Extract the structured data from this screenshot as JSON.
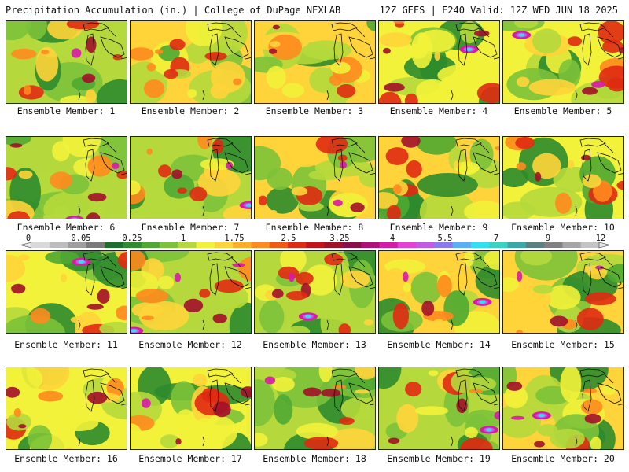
{
  "header": {
    "left": "Precipitation Accumulation (in.) | College of DuPage NEXLAB",
    "right": "12Z GEFS | F240 Valid: 12Z WED JUN 18 2025"
  },
  "members": [
    {
      "label": "Ensemble Member: 1"
    },
    {
      "label": "Ensemble Member: 2"
    },
    {
      "label": "Ensemble Member: 3"
    },
    {
      "label": "Ensemble Member: 4"
    },
    {
      "label": "Ensemble Member: 5"
    },
    {
      "label": "Ensemble Member: 6"
    },
    {
      "label": "Ensemble Member: 7"
    },
    {
      "label": "Ensemble Member: 8"
    },
    {
      "label": "Ensemble Member: 9"
    },
    {
      "label": "Ensemble Member: 10"
    },
    {
      "label": "Ensemble Member: 11"
    },
    {
      "label": "Ensemble Member: 12"
    },
    {
      "label": "Ensemble Member: 13"
    },
    {
      "label": "Ensemble Member: 14"
    },
    {
      "label": "Ensemble Member: 15"
    },
    {
      "label": "Ensemble Member: 16"
    },
    {
      "label": "Ensemble Member: 17"
    },
    {
      "label": "Ensemble Member: 18"
    },
    {
      "label": "Ensemble Member: 19"
    },
    {
      "label": "Ensemble Member: 20"
    }
  ],
  "colorbar": {
    "labels": [
      "0",
      "0.05",
      "0.25",
      "1",
      "1.75",
      "2.5",
      "3.25",
      "4",
      "5.5",
      "7",
      "9",
      "12"
    ],
    "colors": [
      "#d9d9d9",
      "#bdbdbd",
      "#9e9e9e",
      "#7a7a7a",
      "#1b6e2b",
      "#2e8b2e",
      "#4fa832",
      "#7cc23a",
      "#b5d93c",
      "#f2f23a",
      "#ffd43a",
      "#ffae2a",
      "#ff8a1e",
      "#f25a14",
      "#e02a12",
      "#c4141a",
      "#a3102a",
      "#8a0f4a",
      "#b0107a",
      "#d81aa8",
      "#e640d8",
      "#c25ae6",
      "#8a7af0",
      "#5ab0f5",
      "#30e0f0",
      "#3ad2c2",
      "#3aa8a8",
      "#5a8080",
      "#808080",
      "#a6a6a6",
      "#c4c4c4"
    ]
  },
  "palette": {
    "green_dark": "#2e8b2e",
    "green": "#4fa832",
    "green_light": "#7cc23a",
    "yellow_green": "#b5d93c",
    "yellow": "#f2f23a",
    "gold": "#ffd43a",
    "orange": "#ff8a1e",
    "red": "#e02a12",
    "maroon": "#a3102a",
    "magenta": "#d81aa8",
    "violet": "#c25ae6",
    "cyan": "#30e0f0"
  }
}
